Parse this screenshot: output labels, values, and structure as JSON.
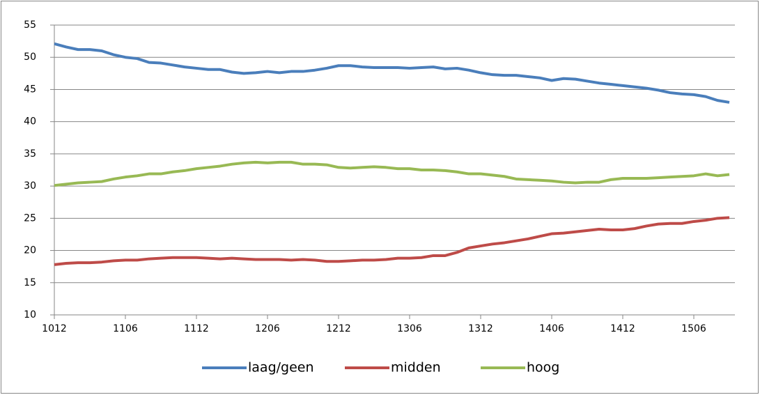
{
  "chart_data": {
    "type": "line",
    "categories": [
      "1012",
      null,
      null,
      null,
      null,
      null,
      "1106",
      null,
      null,
      null,
      null,
      null,
      "1112",
      null,
      null,
      null,
      null,
      null,
      "1206",
      null,
      null,
      null,
      null,
      null,
      "1212",
      null,
      null,
      null,
      null,
      null,
      "1306",
      null,
      null,
      null,
      null,
      null,
      "1312",
      null,
      null,
      null,
      null,
      null,
      "1406",
      null,
      null,
      null,
      null,
      null,
      "1412",
      null,
      null,
      null,
      null,
      null,
      "1506",
      null,
      null,
      null
    ],
    "series": [
      {
        "name": "laag/geen",
        "color": "#4a7ebb",
        "values": [
          52.1,
          51.6,
          51.2,
          51.2,
          51.0,
          50.4,
          50.0,
          49.8,
          49.2,
          49.1,
          48.8,
          48.5,
          48.3,
          48.1,
          48.1,
          47.7,
          47.5,
          47.6,
          47.8,
          47.6,
          47.8,
          47.8,
          48.0,
          48.3,
          48.7,
          48.7,
          48.5,
          48.4,
          48.4,
          48.4,
          48.3,
          48.4,
          48.5,
          48.2,
          48.3,
          48.0,
          47.6,
          47.3,
          47.2,
          47.2,
          47.0,
          46.8,
          46.4,
          46.7,
          46.6,
          46.3,
          46.0,
          45.8,
          45.6,
          45.4,
          45.2,
          44.9,
          44.5,
          44.3,
          44.2,
          43.9,
          43.3,
          43.0
        ]
      },
      {
        "name": "midden",
        "color": "#be4b48",
        "values": [
          17.8,
          18.0,
          18.1,
          18.1,
          18.2,
          18.4,
          18.5,
          18.5,
          18.7,
          18.8,
          18.9,
          18.9,
          18.9,
          18.8,
          18.7,
          18.8,
          18.7,
          18.6,
          18.6,
          18.6,
          18.5,
          18.6,
          18.5,
          18.3,
          18.3,
          18.4,
          18.5,
          18.5,
          18.6,
          18.8,
          18.8,
          18.9,
          19.2,
          19.2,
          19.7,
          20.4,
          20.7,
          21.0,
          21.2,
          21.5,
          21.8,
          22.2,
          22.6,
          22.7,
          22.9,
          23.1,
          23.3,
          23.2,
          23.2,
          23.4,
          23.8,
          24.1,
          24.2,
          24.2,
          24.5,
          24.7,
          25.0,
          25.1
        ]
      },
      {
        "name": "hoog",
        "color": "#98b954",
        "values": [
          30.1,
          30.3,
          30.5,
          30.6,
          30.7,
          31.1,
          31.4,
          31.6,
          31.9,
          31.9,
          32.2,
          32.4,
          32.7,
          32.9,
          33.1,
          33.4,
          33.6,
          33.7,
          33.6,
          33.7,
          33.7,
          33.4,
          33.4,
          33.3,
          32.9,
          32.8,
          32.9,
          33.0,
          32.9,
          32.7,
          32.7,
          32.5,
          32.5,
          32.4,
          32.2,
          31.9,
          31.9,
          31.7,
          31.5,
          31.1,
          31.0,
          30.9,
          30.8,
          30.6,
          30.5,
          30.6,
          30.6,
          31.0,
          31.2,
          31.2,
          31.2,
          31.3,
          31.4,
          31.5,
          31.6,
          31.9,
          31.6,
          31.8
        ]
      }
    ],
    "ylim": [
      10,
      55
    ],
    "yticks": [
      10,
      15,
      20,
      25,
      30,
      35,
      40,
      45,
      50,
      55
    ],
    "grid": true,
    "legend": "bottom"
  }
}
